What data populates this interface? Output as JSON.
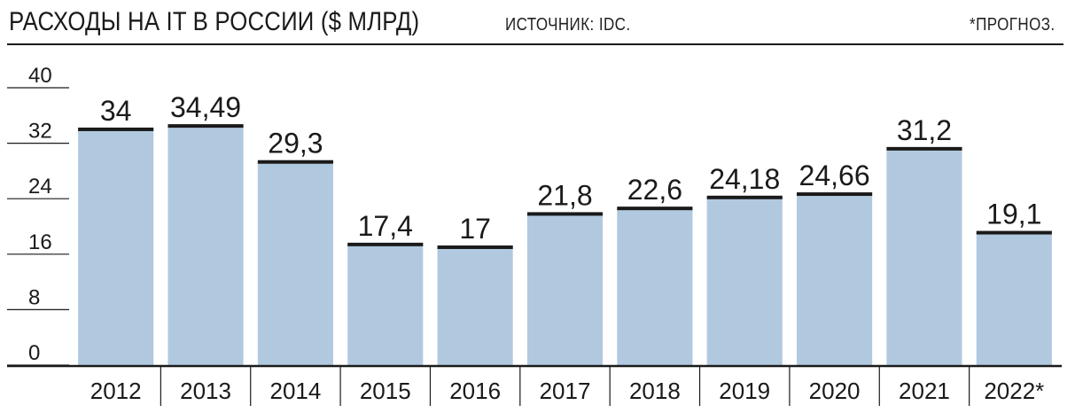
{
  "header": {
    "title": "РАСХОДЫ НА IT В РОССИИ ($ МЛРД)",
    "source": "ИСТОЧНИК: IDC.",
    "note": "*ПРОГНОЗ."
  },
  "colors": {
    "bar_fill": "#b1c9df",
    "bar_top": "#1a1a1a",
    "text": "#1a1a1a"
  },
  "chart_data": {
    "type": "bar",
    "title": "РАСХОДЫ НА IT В РОССИИ ($ МЛРД)",
    "xlabel": "",
    "ylabel": "",
    "categories": [
      "2012",
      "2013",
      "2014",
      "2015",
      "2016",
      "2017",
      "2018",
      "2019",
      "2020",
      "2021",
      "2022*"
    ],
    "values": [
      34,
      34.49,
      29.3,
      17.4,
      17,
      21.8,
      22.6,
      24.18,
      24.66,
      31.2,
      19.1
    ],
    "value_labels": [
      "34",
      "34,49",
      "29,3",
      "17,4",
      "17",
      "21,8",
      "22,6",
      "24,18",
      "24,66",
      "31,2",
      "19,1"
    ],
    "ylim": [
      0,
      40
    ],
    "yticks": [
      0,
      8,
      16,
      24,
      32,
      40
    ],
    "grid": false,
    "legend": "none"
  }
}
